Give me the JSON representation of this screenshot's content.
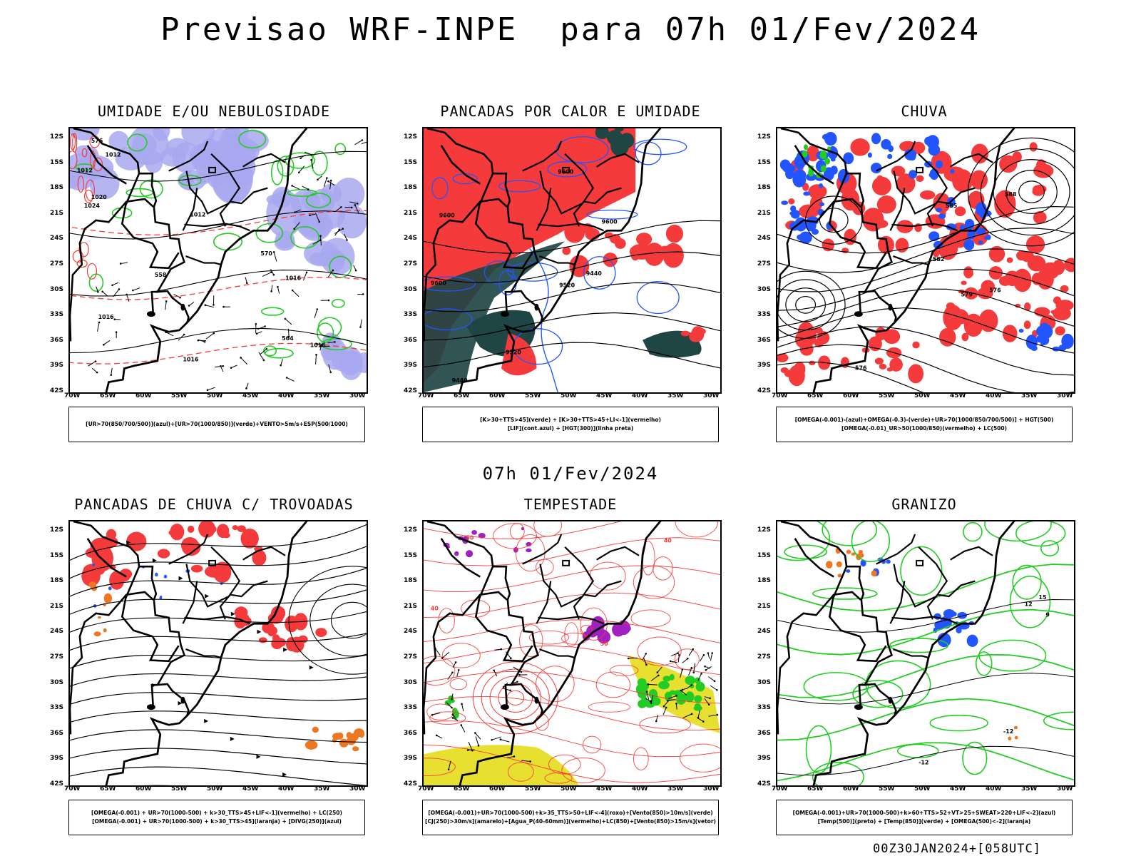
{
  "title": "Previsao WRF-INPE  para 07h 01/Fev/2024",
  "mid_title": "07h 01/Fev/2024",
  "footer": "00Z30JAN2024+[058UTC]",
  "axis": {
    "lat_labels": [
      "12S",
      "15S",
      "18S",
      "21S",
      "24S",
      "27S",
      "30S",
      "33S",
      "36S",
      "39S",
      "42S"
    ],
    "lon_labels": [
      "70W",
      "65W",
      "60W",
      "55W",
      "50W",
      "45W",
      "40W",
      "35W",
      "30W"
    ]
  },
  "panels": [
    {
      "id": "umidade",
      "title": "UMIDADE E/OU NEBULOSIDADE",
      "legend": [
        "[UR>70(850/700/500)](azul)+[UR>70(1000/850)](verde)+VENTO>5m/s+ESP(500/1000)"
      ],
      "contour_labels": [
        "1012",
        "1012",
        "1012",
        "1016",
        "1016",
        "1016",
        "1016",
        "1020",
        "1024",
        "576",
        "570",
        "564",
        "558"
      ]
    },
    {
      "id": "pancadas-calor",
      "title": "PANCADAS POR CALOR E UMIDADE",
      "legend": [
        "[K>30+TTS>45](verde) + [K>30+TTS>45+LI<-1](vermelho)",
        "[LIF](cont.azul) + [HGT(300)](linha preta)"
      ],
      "contour_labels": [
        "9600",
        "9600",
        "9600",
        "9600",
        "9520",
        "9520",
        "9440",
        "9440"
      ]
    },
    {
      "id": "chuva",
      "title": "CHUVA",
      "legend": [
        "[OMEGA(-0.001)-(azul)+OMEGA(-0.3)-(verde)+UR>70(1000/850/700/500)] + HGT(500)",
        "[OMEGA(-0.01)_UR>50(1000/850)(vermelho) + LC(500)"
      ],
      "contour_labels": [
        "588",
        "585",
        "582",
        "579",
        "576",
        "576"
      ]
    },
    {
      "id": "trovoadas",
      "title": "PANCADAS DE CHUVA C/ TROVOADAS",
      "legend": [
        "[OMEGA(-0.001) + UR>70(1000-500) + k>30_TTS>45+LIF<-1](vermelho) + LC(250)",
        "[OMEGA(-0.001) + UR>70(1000-500) + k>30_TTS>45](laranja) + [DIVG(250)](azul)"
      ],
      "contour_labels": []
    },
    {
      "id": "tempestade",
      "title": "TEMPESTADE",
      "legend": [
        "[OMEGA(-0.001)+UR>70(1000-500)+k>35_TTS>50+LIF<-4](roxo)+[Vento(850)>10m/s](verde)",
        "[CJ(250)>30m/s](amarelo)+[Agua_P(40-60mm)](vermelho)+LC(850)+[Vento(850)>15m/s](vetor)"
      ],
      "contour_labels": [
        "40",
        "40",
        "50",
        "50"
      ]
    },
    {
      "id": "granizo",
      "title": "GRANIZO",
      "legend": [
        "[OMEGA(-0.001)+UR>70(1000-500)+k>60+TTS>52+VT>25+SWEAT>220+LIF<-2](azul)",
        "[Temp(500)](preto) + [Temp(850)](verde) + [OMEGA(500)<-2](laranja)"
      ],
      "contour_labels": [
        "-12",
        "-12",
        "15",
        "12",
        "9"
      ]
    }
  ],
  "colors": {
    "red": "#f43a3a",
    "blue": "#2255ff",
    "green": "#22cc22",
    "lavender": "#a8a8f0",
    "darkteal": "#1f4545",
    "yellow": "#e8e030",
    "purple": "#a020c0",
    "orange": "#ee7722"
  }
}
